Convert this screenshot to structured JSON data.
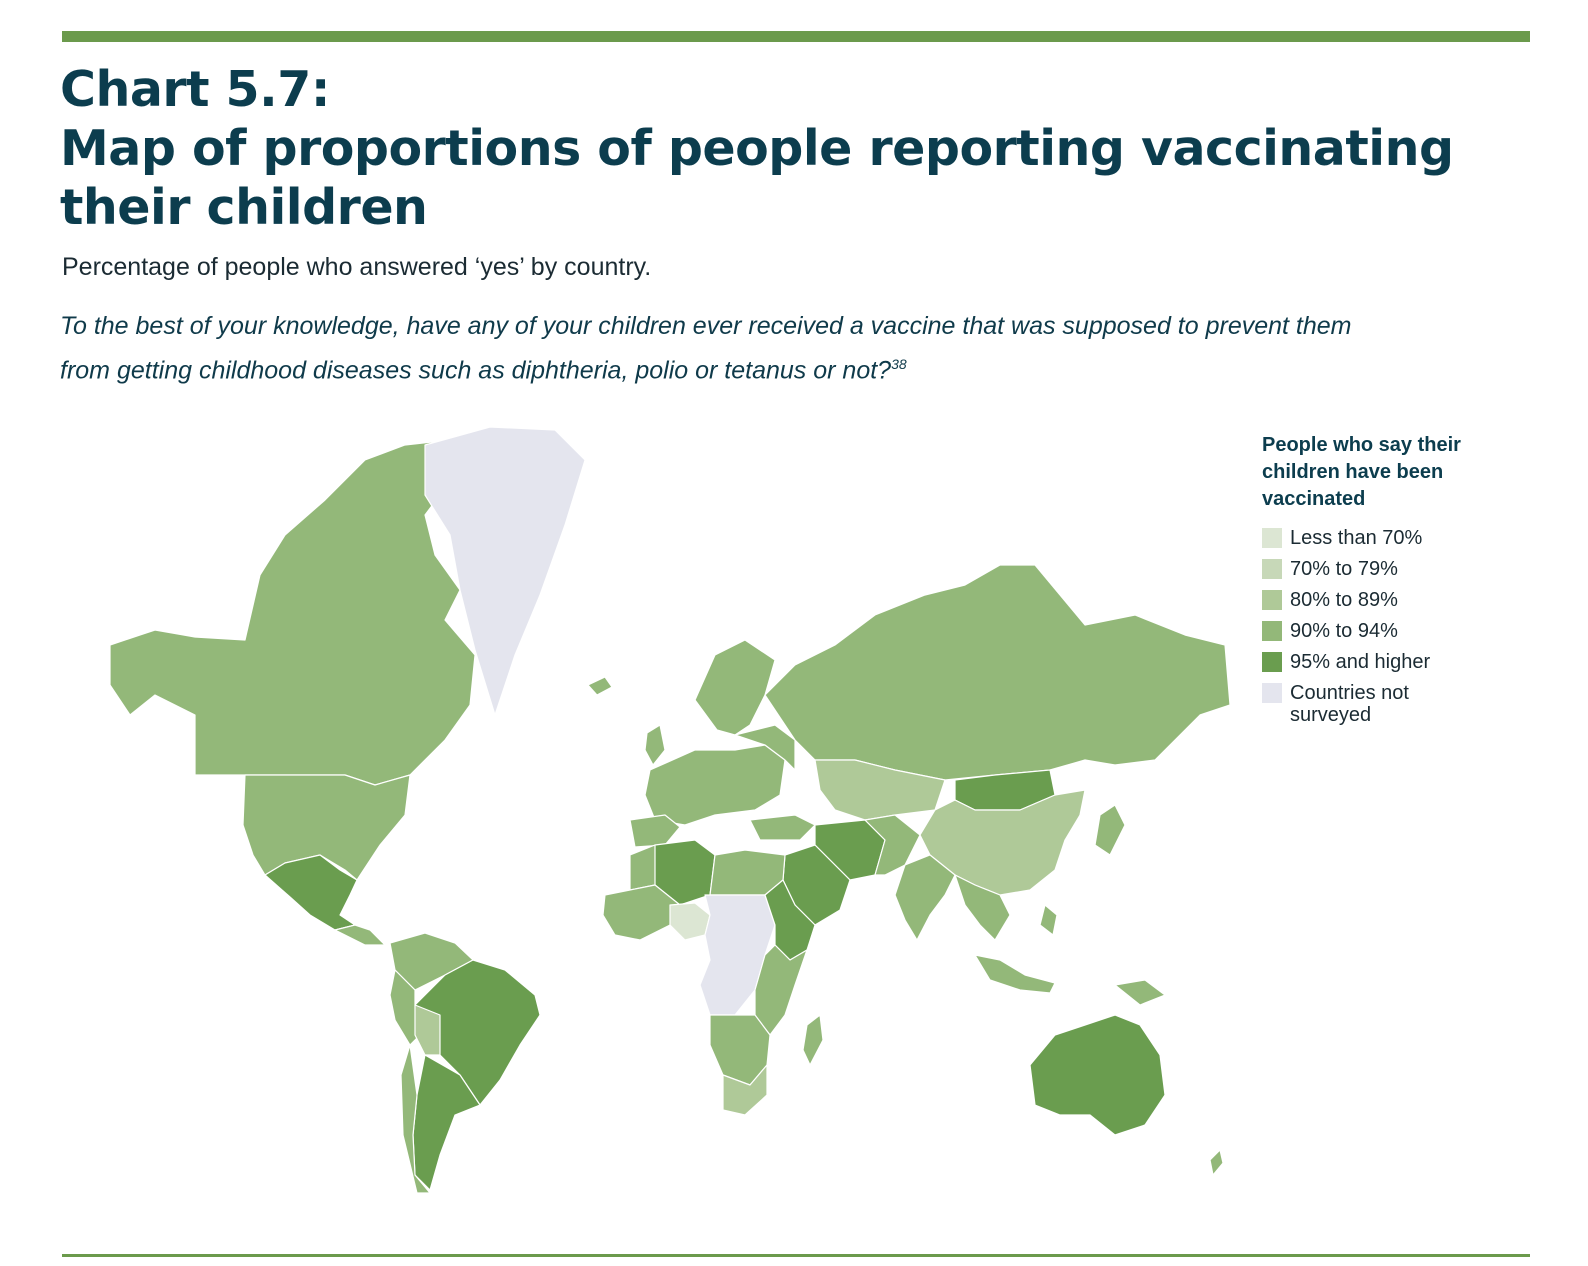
{
  "header": {
    "chart_label": "Chart 5.7:",
    "title_line1": "Map of proportions of people reporting vaccinating",
    "title_line2": "their children",
    "subtitle": "Percentage of people who answered ‘yes’ by country.",
    "question": "To the best of your knowledge, have any of your children ever received a vaccine that was supposed to prevent them from getting childhood diseases such as diphtheria, polio or tetanus or not?",
    "footnote": "38"
  },
  "legend": {
    "title": "People who say their children have been vaccinated",
    "items": [
      {
        "label": "Less than 70%",
        "color": "#dce6d3"
      },
      {
        "label": "70% to 79%",
        "color": "#c7d8b8"
      },
      {
        "label": "80% to 89%",
        "color": "#afc998"
      },
      {
        "label": "90% to 94%",
        "color": "#93b879"
      },
      {
        "label": "95% and higher",
        "color": "#6a9d4f"
      },
      {
        "label": "Countries not surveyed",
        "color": "#e4e5ee"
      }
    ]
  },
  "chart_data": {
    "type": "choropleth",
    "title": "Map of proportions of people reporting vaccinating their children",
    "categories": [
      "Less than 70%",
      "70% to 79%",
      "80% to 89%",
      "90% to 94%",
      "95% and higher",
      "Countries not surveyed"
    ],
    "regions": [
      {
        "name": "Canada",
        "category": "90% to 94%"
      },
      {
        "name": "United States",
        "category": "90% to 94%"
      },
      {
        "name": "Mexico",
        "category": "95% and higher"
      },
      {
        "name": "Greenland",
        "category": "Countries not surveyed"
      },
      {
        "name": "Brazil",
        "category": "95% and higher"
      },
      {
        "name": "Argentina",
        "category": "95% and higher"
      },
      {
        "name": "Bolivia",
        "category": "80% to 89%"
      },
      {
        "name": "Russia",
        "category": "90% to 94%"
      },
      {
        "name": "Kazakhstan",
        "category": "80% to 89%"
      },
      {
        "name": "China",
        "category": "80% to 89%"
      },
      {
        "name": "Mongolia",
        "category": "95% and higher"
      },
      {
        "name": "India",
        "category": "90% to 94%"
      },
      {
        "name": "Saudi Arabia",
        "category": "95% and higher"
      },
      {
        "name": "Iran",
        "category": "95% and higher"
      },
      {
        "name": "Australia",
        "category": "95% and higher"
      },
      {
        "name": "Algeria",
        "category": "95% and higher"
      },
      {
        "name": "Nigeria",
        "category": "Less than 70%"
      },
      {
        "name": "Democratic Republic of the Congo",
        "category": "Countries not surveyed"
      },
      {
        "name": "South Africa",
        "category": "80% to 89%"
      },
      {
        "name": "Ethiopia",
        "category": "95% and higher"
      }
    ]
  }
}
